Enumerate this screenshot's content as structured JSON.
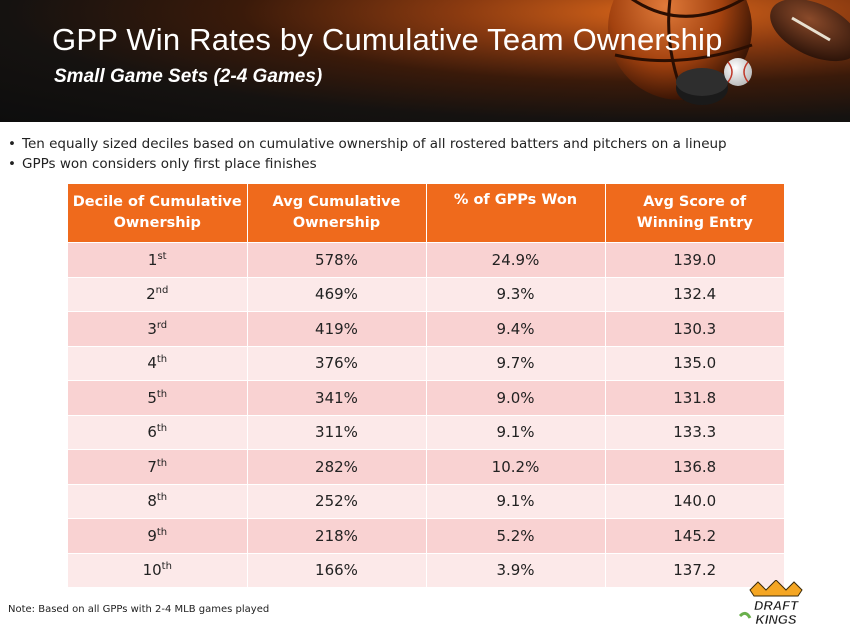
{
  "header": {
    "title": "GPP Win Rates by Cumulative Team Ownership",
    "subtitle": "Small Game Sets (2-4 Games)"
  },
  "bullets": [
    "Ten equally sized deciles based on cumulative ownership of all rostered batters and pitchers on a lineup",
    "GPPs won considers only first place finishes"
  ],
  "table": {
    "headers": [
      [
        "Decile of Cumulative",
        "Ownership"
      ],
      [
        "Avg Cumulative",
        "Ownership"
      ],
      [
        "% of GPPs Won",
        ""
      ],
      [
        "Avg Score of",
        "Winning Entry"
      ]
    ],
    "rows": [
      {
        "decile": "1",
        "suffix": "st",
        "ownership": "578%",
        "won": "24.9%",
        "score": "139.0"
      },
      {
        "decile": "2",
        "suffix": "nd",
        "ownership": "469%",
        "won": "9.3%",
        "score": "132.4"
      },
      {
        "decile": "3",
        "suffix": "rd",
        "ownership": "419%",
        "won": "9.4%",
        "score": "130.3"
      },
      {
        "decile": "4",
        "suffix": "th",
        "ownership": "376%",
        "won": "9.7%",
        "score": "135.0"
      },
      {
        "decile": "5",
        "suffix": "th",
        "ownership": "341%",
        "won": "9.0%",
        "score": "131.8"
      },
      {
        "decile": "6",
        "suffix": "th",
        "ownership": "311%",
        "won": "9.1%",
        "score": "133.3"
      },
      {
        "decile": "7",
        "suffix": "th",
        "ownership": "282%",
        "won": "10.2%",
        "score": "136.8"
      },
      {
        "decile": "8",
        "suffix": "th",
        "ownership": "252%",
        "won": "9.1%",
        "score": "140.0"
      },
      {
        "decile": "9",
        "suffix": "th",
        "ownership": "218%",
        "won": "5.2%",
        "score": "145.2"
      },
      {
        "decile": "10",
        "suffix": "th",
        "ownership": "166%",
        "won": "3.9%",
        "score": "137.2"
      }
    ]
  },
  "note": "Note: Based on all GPPs with 2-4 MLB games played",
  "logo": {
    "line1": "DRAFT",
    "line2": "KINGS"
  },
  "colors": {
    "accent": "#ef6a1c",
    "row_odd": "#f9d2d2",
    "row_even": "#fce9e9"
  }
}
